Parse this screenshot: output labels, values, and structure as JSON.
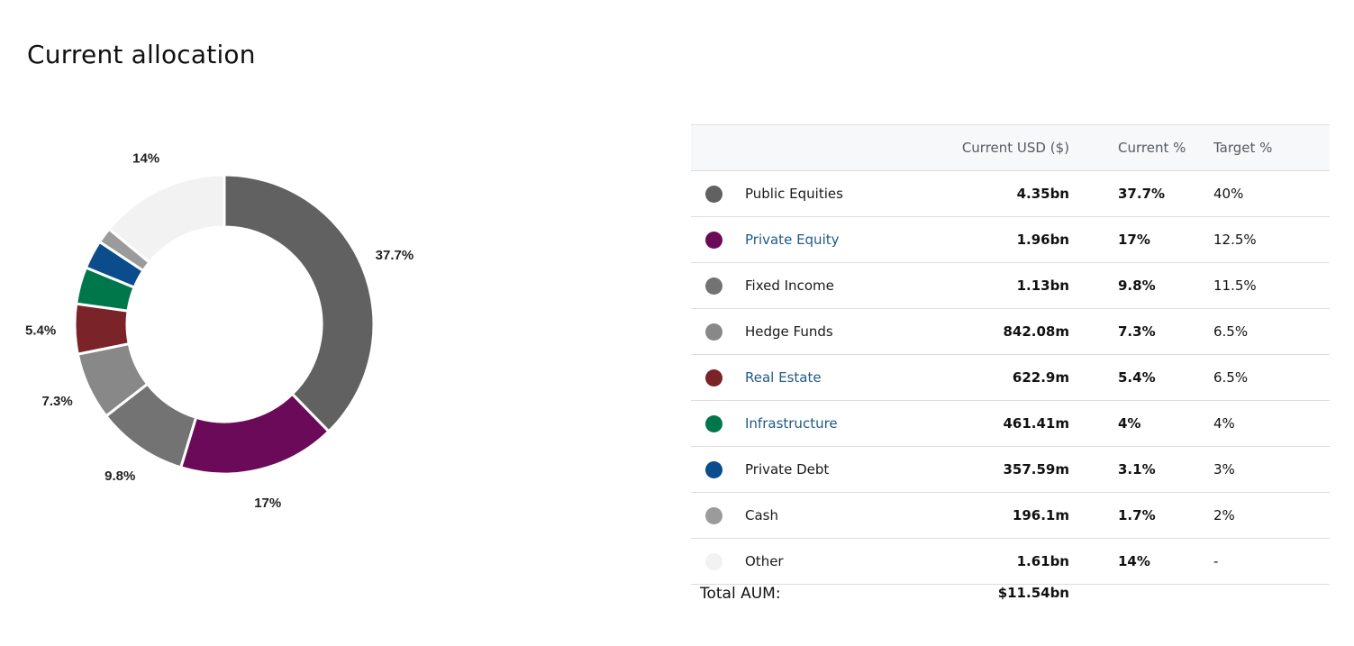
{
  "page": {
    "title": "Current allocation"
  },
  "table": {
    "headers": {
      "current_usd": "Current USD ($)",
      "current_pct": "Current %",
      "target_pct": "Target %"
    },
    "rows": [
      {
        "name": "Public Equities",
        "current_usd": "4.35bn",
        "current_pct": "37.7%",
        "target_pct": "40%",
        "color": "#616161",
        "link": false
      },
      {
        "name": "Private Equity",
        "current_usd": "1.96bn",
        "current_pct": "17%",
        "target_pct": "12.5%",
        "color": "#6c0a5a",
        "link": true
      },
      {
        "name": "Fixed Income",
        "current_usd": "1.13bn",
        "current_pct": "9.8%",
        "target_pct": "11.5%",
        "color": "#737373",
        "link": false
      },
      {
        "name": "Hedge Funds",
        "current_usd": "842.08m",
        "current_pct": "7.3%",
        "target_pct": "6.5%",
        "color": "#888888",
        "link": false
      },
      {
        "name": "Real Estate",
        "current_usd": "622.9m",
        "current_pct": "5.4%",
        "target_pct": "6.5%",
        "color": "#7a2328",
        "link": true
      },
      {
        "name": "Infrastructure",
        "current_usd": "461.41m",
        "current_pct": "4%",
        "target_pct": "4%",
        "color": "#00774a",
        "link": true
      },
      {
        "name": "Private Debt",
        "current_usd": "357.59m",
        "current_pct": "3.1%",
        "target_pct": "3%",
        "color": "#0a4c8c",
        "link": false
      },
      {
        "name": "Cash",
        "current_usd": "196.1m",
        "current_pct": "1.7%",
        "target_pct": "2%",
        "color": "#9b9b9b",
        "link": false
      },
      {
        "name": "Other",
        "current_usd": "1.61bn",
        "current_pct": "14%",
        "target_pct": "-",
        "color": "#f2f2f2",
        "link": false
      }
    ],
    "total_label": "Total AUM:",
    "total_value": "$11.54bn"
  },
  "chart_data": {
    "type": "pie",
    "variant": "donut",
    "title": "",
    "categories": [
      "Public Equities",
      "Private Equity",
      "Fixed Income",
      "Hedge Funds",
      "Real Estate",
      "Infrastructure",
      "Private Debt",
      "Cash",
      "Other"
    ],
    "values": [
      37.7,
      17,
      9.8,
      7.3,
      5.4,
      4,
      3.1,
      1.7,
      14
    ],
    "colors": [
      "#616161",
      "#6c0a5a",
      "#737373",
      "#888888",
      "#7a2328",
      "#00774a",
      "#0a4c8c",
      "#9b9b9b",
      "#f2f2f2"
    ],
    "labels": [
      "37.7%",
      "17%",
      "9.8%",
      "7.3%",
      "5.4%",
      "",
      "",
      "",
      "14%"
    ],
    "legend": "none"
  }
}
